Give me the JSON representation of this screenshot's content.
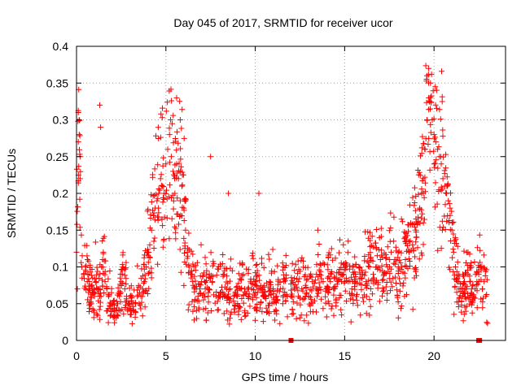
{
  "chart_data": {
    "type": "scatter",
    "title": "Day 045 of 2017, SRMTID for receiver ucor",
    "xlabel": "GPS time / hours",
    "ylabel": "SRMTID / TECUs",
    "xlim": [
      0,
      24
    ],
    "ylim": [
      0,
      0.4
    ],
    "x_ticks": [
      0,
      5,
      10,
      15,
      20
    ],
    "x_tick_labels": [
      "0",
      "5",
      "10",
      "15",
      "20"
    ],
    "y_ticks": [
      0,
      0.05,
      0.1,
      0.15,
      0.2,
      0.25,
      0.3,
      0.35,
      0.4
    ],
    "y_tick_labels": [
      "0",
      "0.05",
      "0.1",
      "0.15",
      "0.2",
      "0.25",
      "0.3",
      "0.35",
      "0.4"
    ],
    "grid": true,
    "marker": "+",
    "color": "#ff0000",
    "gap_markers_x": [
      12.0,
      22.5
    ],
    "series": [
      {
        "name": "SRMTID",
        "x": [
          0.0,
          0.1,
          0.15,
          0.2,
          0.3,
          0.4,
          0.5,
          0.6,
          0.7,
          0.8,
          0.9,
          1.0,
          1.1,
          1.2,
          1.3,
          1.4,
          1.5,
          1.6,
          1.7,
          1.8,
          1.9,
          2.0,
          2.1,
          2.2,
          2.3,
          2.4,
          2.5,
          2.6,
          2.7,
          2.8,
          2.9,
          3.0,
          3.1,
          3.2,
          3.3,
          3.4,
          3.5,
          3.6,
          3.7,
          3.8,
          3.9,
          4.0,
          4.1,
          4.2,
          4.3,
          4.4,
          4.5,
          4.6,
          4.7,
          4.8,
          4.9,
          5.0,
          5.1,
          5.2,
          5.3,
          5.4,
          5.5,
          5.6,
          5.7,
          5.8,
          5.9,
          6.0,
          6.1,
          6.2,
          6.3,
          6.4,
          6.5,
          6.6,
          6.7,
          6.8,
          6.9,
          7.0,
          7.2,
          7.4,
          7.6,
          7.8,
          8.0,
          8.2,
          8.4,
          8.6,
          8.8,
          9.0,
          9.2,
          9.4,
          9.6,
          9.8,
          10.0,
          10.2,
          10.4,
          10.6,
          10.8,
          11.0,
          11.2,
          11.4,
          11.6,
          11.8,
          12.0,
          12.2,
          12.4,
          12.6,
          12.8,
          13.0,
          13.2,
          13.4,
          13.6,
          13.8,
          14.0,
          14.2,
          14.4,
          14.6,
          14.8,
          15.0,
          15.2,
          15.4,
          15.6,
          15.8,
          16.0,
          16.2,
          16.4,
          16.6,
          16.8,
          17.0,
          17.2,
          17.4,
          17.6,
          17.8,
          18.0,
          18.2,
          18.4,
          18.6,
          18.8,
          19.0,
          19.1,
          19.2,
          19.3,
          19.4,
          19.5,
          19.6,
          19.7,
          19.8,
          19.9,
          20.0,
          20.1,
          20.2,
          20.3,
          20.4,
          20.5,
          20.6,
          20.7,
          20.8,
          20.9,
          21.0,
          21.1,
          21.2,
          21.3,
          21.4,
          21.5,
          21.6,
          21.7,
          21.8,
          21.9,
          22.0,
          22.1,
          22.2,
          22.3,
          22.4,
          22.5,
          22.6,
          22.7,
          22.8,
          22.9,
          0.05,
          0.1,
          0.15,
          0.2,
          1.3,
          1.35,
          5.6,
          5.8,
          7.5,
          8.5,
          10.2,
          13.5,
          17.5,
          19.6,
          19.7,
          20.0
        ],
        "y": [
          0.12,
          0.31,
          0.28,
          0.22,
          0.1,
          0.09,
          0.1,
          0.08,
          0.07,
          0.06,
          0.07,
          0.06,
          0.08,
          0.07,
          0.06,
          0.1,
          0.12,
          0.08,
          0.07,
          0.06,
          0.05,
          0.05,
          0.04,
          0.04,
          0.05,
          0.06,
          0.08,
          0.1,
          0.07,
          0.06,
          0.05,
          0.06,
          0.05,
          0.04,
          0.05,
          0.06,
          0.05,
          0.06,
          0.07,
          0.08,
          0.1,
          0.12,
          0.13,
          0.15,
          0.17,
          0.18,
          0.19,
          0.2,
          0.22,
          0.21,
          0.2,
          0.24,
          0.26,
          0.28,
          0.25,
          0.23,
          0.2,
          0.24,
          0.22,
          0.19,
          0.21,
          0.18,
          0.15,
          0.12,
          0.1,
          0.09,
          0.08,
          0.07,
          0.07,
          0.06,
          0.07,
          0.08,
          0.07,
          0.07,
          0.08,
          0.06,
          0.06,
          0.09,
          0.07,
          0.07,
          0.06,
          0.06,
          0.07,
          0.07,
          0.06,
          0.07,
          0.08,
          0.07,
          0.07,
          0.06,
          0.08,
          0.07,
          0.06,
          0.07,
          0.08,
          0.06,
          0.06,
          0.07,
          0.08,
          0.07,
          0.06,
          0.06,
          0.08,
          0.07,
          0.09,
          0.08,
          0.07,
          0.08,
          0.07,
          0.08,
          0.09,
          0.08,
          0.08,
          0.07,
          0.09,
          0.1,
          0.09,
          0.08,
          0.1,
          0.09,
          0.1,
          0.11,
          0.09,
          0.1,
          0.12,
          0.11,
          0.1,
          0.1,
          0.11,
          0.12,
          0.13,
          0.14,
          0.16,
          0.18,
          0.2,
          0.22,
          0.26,
          0.3,
          0.33,
          0.35,
          0.3,
          0.28,
          0.27,
          0.26,
          0.25,
          0.24,
          0.22,
          0.21,
          0.2,
          0.19,
          0.18,
          0.15,
          0.12,
          0.1,
          0.08,
          0.07,
          0.07,
          0.06,
          0.08,
          0.07,
          0.09,
          0.08,
          0.07,
          0.06,
          0.07,
          0.08,
          0.09,
          0.1,
          0.07,
          0.08,
          0.06,
          0.07,
          0.27,
          0.3,
          0.25,
          0.32,
          0.29,
          0.33,
          0.3,
          0.25,
          0.2,
          0.2,
          0.15,
          0.11,
          0.36,
          0.37,
          0.24
        ],
        "x_dense_bands": [
          [
            0.0,
            23.0
          ]
        ]
      }
    ]
  }
}
